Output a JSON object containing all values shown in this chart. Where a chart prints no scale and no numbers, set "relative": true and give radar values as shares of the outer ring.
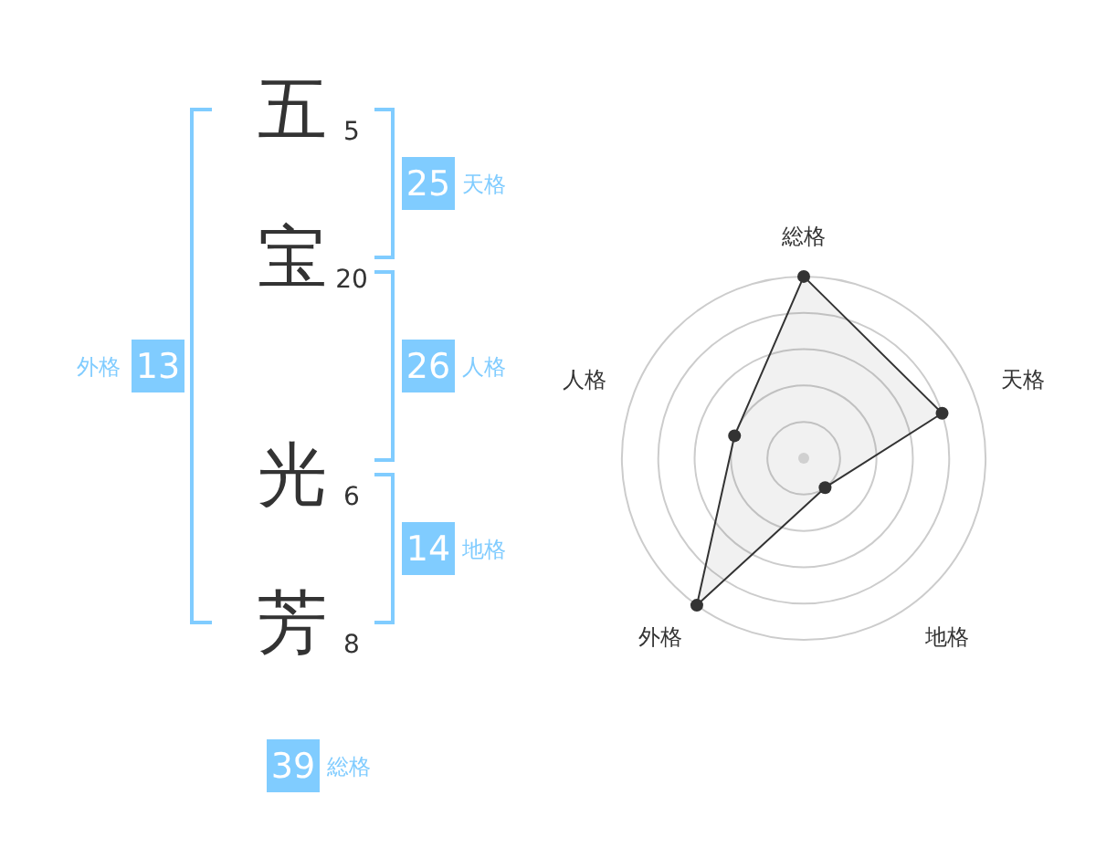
{
  "chart_data": [
    {
      "type": "other",
      "categories": [
        "五",
        "宝",
        "光",
        "芳"
      ],
      "color": "#80ccff",
      "annotations": [
        "5",
        "20",
        "6",
        "8",
        "25",
        "天格",
        "26",
        "人格",
        "14",
        "地格",
        "13",
        "外格",
        "39",
        "総格"
      ]
    },
    {
      "type": "radar",
      "categories": [
        "総格",
        "天格",
        "地格",
        "外格",
        "人格"
      ],
      "relative": true,
      "series": [
        {
          "color": "#333333",
          "values": [
            1,
            0.8,
            0.2,
            1,
            0.4
          ]
        }
      ],
      "grid": true,
      "marker": "circle"
    }
  ]
}
